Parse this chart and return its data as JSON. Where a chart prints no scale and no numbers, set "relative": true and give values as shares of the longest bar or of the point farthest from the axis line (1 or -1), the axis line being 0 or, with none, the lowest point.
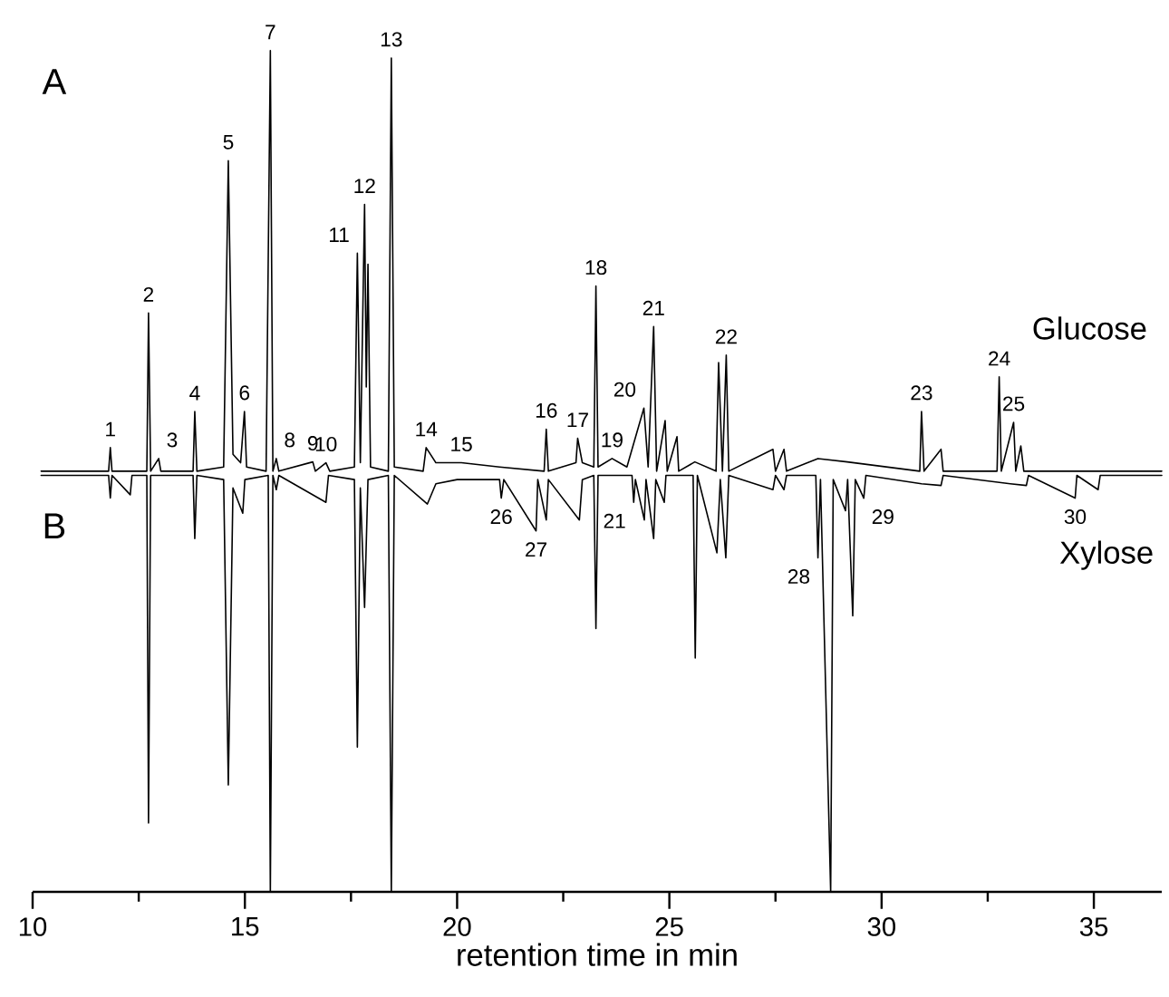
{
  "chart_data": {
    "type": "line",
    "relative": true,
    "xlabel": "retention time in min",
    "xlim": [
      10,
      36.6
    ],
    "xticks": [
      10,
      15,
      20,
      25,
      30,
      35
    ],
    "series": [
      {
        "name": "Glucose",
        "color": "#000000",
        "x": [
          10.2,
          11.79,
          11.83,
          11.87,
          12.69,
          12.73,
          12.78,
          12.97,
          13.02,
          13.78,
          13.82,
          13.87,
          14.5,
          14.61,
          14.72,
          14.9,
          14.99,
          15.04,
          15.5,
          15.6,
          15.66,
          15.74,
          15.8,
          16.6,
          16.66,
          16.91,
          17.0,
          17.58,
          17.65,
          17.72,
          17.82,
          17.86,
          17.9,
          17.96,
          18.38,
          18.45,
          18.52,
          19.2,
          19.27,
          19.5,
          20.1,
          21.0,
          22.05,
          22.1,
          22.15,
          22.8,
          22.84,
          22.95,
          23.22,
          23.27,
          23.32,
          23.65,
          24.0,
          24.4,
          24.5,
          24.63,
          24.7,
          24.9,
          24.95,
          25.18,
          25.22,
          25.6,
          26.1,
          26.16,
          26.25,
          26.34,
          26.4,
          27.44,
          27.5,
          27.7,
          27.76,
          28.5,
          29.19,
          30.9,
          30.94,
          31.0,
          31.4,
          31.45,
          32.72,
          32.77,
          32.82,
          33.11,
          33.16,
          33.28,
          33.35,
          36.6
        ],
        "values": [
          0.5,
          0.5,
          0.528,
          0.5,
          0.5,
          0.688,
          0.5,
          0.515,
          0.5,
          0.5,
          0.571,
          0.5,
          0.505,
          0.869,
          0.52,
          0.51,
          0.571,
          0.505,
          0.5,
          1.0,
          0.5,
          0.515,
          0.5,
          0.511,
          0.5,
          0.51,
          0.5,
          0.505,
          0.759,
          0.51,
          0.817,
          0.6,
          0.746,
          0.505,
          0.5,
          0.991,
          0.505,
          0.5,
          0.528,
          0.51,
          0.51,
          0.505,
          0.5,
          0.55,
          0.5,
          0.51,
          0.539,
          0.51,
          0.505,
          0.72,
          0.505,
          0.515,
          0.505,
          0.575,
          0.505,
          0.672,
          0.5,
          0.56,
          0.5,
          0.541,
          0.5,
          0.511,
          0.5,
          0.629,
          0.5,
          0.638,
          0.5,
          0.526,
          0.5,
          0.526,
          0.5,
          0.515,
          0.511,
          0.5,
          0.571,
          0.5,
          0.526,
          0.5,
          0.5,
          0.612,
          0.5,
          0.558,
          0.5,
          0.53,
          0.5,
          0.5
        ]
      },
      {
        "name": "Xylose",
        "color": "#000000",
        "x": [
          10.2,
          11.79,
          11.83,
          11.87,
          12.3,
          12.34,
          12.69,
          12.73,
          12.78,
          13.78,
          13.82,
          13.87,
          14.5,
          14.61,
          14.72,
          14.95,
          15.0,
          15.55,
          15.6,
          15.66,
          15.74,
          15.8,
          16.91,
          16.97,
          17.58,
          17.65,
          17.72,
          17.82,
          17.9,
          18.38,
          18.45,
          18.52,
          19.3,
          19.5,
          20.0,
          21.0,
          21.04,
          21.1,
          21.86,
          21.9,
          22.1,
          22.15,
          22.88,
          22.95,
          23.22,
          23.27,
          23.32,
          24.12,
          24.16,
          24.2,
          24.41,
          24.45,
          24.63,
          24.68,
          24.88,
          24.92,
          25.56,
          25.61,
          25.66,
          26.12,
          26.2,
          26.33,
          26.4,
          27.44,
          27.5,
          27.7,
          27.76,
          28.45,
          28.5,
          28.56,
          28.8,
          28.86,
          29.15,
          29.2,
          29.32,
          29.38,
          29.58,
          29.63,
          30.94,
          31.4,
          31.45,
          33.03,
          33.41,
          33.46,
          34.56,
          34.6,
          35.1,
          35.15,
          36.6
        ],
        "values": [
          0.495,
          0.495,
          0.468,
          0.495,
          0.472,
          0.495,
          0.495,
          0.082,
          0.495,
          0.495,
          0.42,
          0.495,
          0.49,
          0.127,
          0.48,
          0.45,
          0.49,
          0.495,
          0.0,
          0.495,
          0.478,
          0.495,
          0.463,
          0.495,
          0.49,
          0.172,
          0.48,
          0.338,
          0.49,
          0.495,
          0.0,
          0.495,
          0.461,
          0.485,
          0.49,
          0.49,
          0.468,
          0.49,
          0.429,
          0.49,
          0.442,
          0.49,
          0.442,
          0.49,
          0.495,
          0.313,
          0.495,
          0.495,
          0.463,
          0.49,
          0.442,
          0.49,
          0.42,
          0.49,
          0.463,
          0.495,
          0.495,
          0.278,
          0.495,
          0.403,
          0.49,
          0.397,
          0.495,
          0.478,
          0.495,
          0.478,
          0.495,
          0.495,
          0.397,
          0.49,
          0.0,
          0.49,
          0.453,
          0.49,
          0.328,
          0.49,
          0.468,
          0.495,
          0.485,
          0.483,
          0.495,
          0.485,
          0.483,
          0.495,
          0.468,
          0.495,
          0.478,
          0.495,
          0.495
        ]
      }
    ],
    "annotations": [
      "A",
      "B",
      {
        "text": "1",
        "x": 11.83,
        "y": 0.528
      },
      {
        "text": "2",
        "x": 12.73,
        "y": 0.688
      },
      {
        "text": "3",
        "x": 12.97,
        "y": 0.515
      },
      {
        "text": "4",
        "x": 13.82,
        "y": 0.571
      },
      {
        "text": "5",
        "x": 14.61,
        "y": 0.869
      },
      {
        "text": "6",
        "x": 14.99,
        "y": 0.571
      },
      {
        "text": "7",
        "x": 15.6,
        "y": 1.0
      },
      {
        "text": "8",
        "x": 15.74,
        "y": 0.515
      },
      {
        "text": "9",
        "x": 16.6,
        "y": 0.511
      },
      {
        "text": "10",
        "x": 16.91,
        "y": 0.51
      },
      {
        "text": "11",
        "x": 17.65,
        "y": 0.759
      },
      {
        "text": "12",
        "x": 17.82,
        "y": 0.817
      },
      {
        "text": "13",
        "x": 18.45,
        "y": 0.991
      },
      {
        "text": "14",
        "x": 19.27,
        "y": 0.528
      },
      {
        "text": "15",
        "x": 20.1,
        "y": 0.51
      },
      {
        "text": "16",
        "x": 22.1,
        "y": 0.55
      },
      {
        "text": "17",
        "x": 22.84,
        "y": 0.539
      },
      {
        "text": "18",
        "x": 23.27,
        "y": 0.72
      },
      {
        "text": "19",
        "x": 23.65,
        "y": 0.515
      },
      {
        "text": "20",
        "x": 24.4,
        "y": 0.575
      },
      {
        "text": "21",
        "x": 24.63,
        "y": 0.672
      },
      {
        "text": "22",
        "x": 26.34,
        "y": 0.638
      },
      {
        "text": "23",
        "x": 30.94,
        "y": 0.571
      },
      {
        "text": "24",
        "x": 32.77,
        "y": 0.612
      },
      {
        "text": "25",
        "x": 33.11,
        "y": 0.558
      },
      {
        "text": "26",
        "x": 21.04,
        "y": 0.468
      },
      {
        "text": "27",
        "x": 21.86,
        "y": 0.429
      },
      {
        "text": "21",
        "x": 24.16,
        "y": 0.463
      },
      {
        "text": "28",
        "x": 28.5,
        "y": 0.397
      },
      {
        "text": "29",
        "x": 29.58,
        "y": 0.468
      },
      {
        "text": "30",
        "x": 34.56,
        "y": 0.468
      }
    ]
  }
}
